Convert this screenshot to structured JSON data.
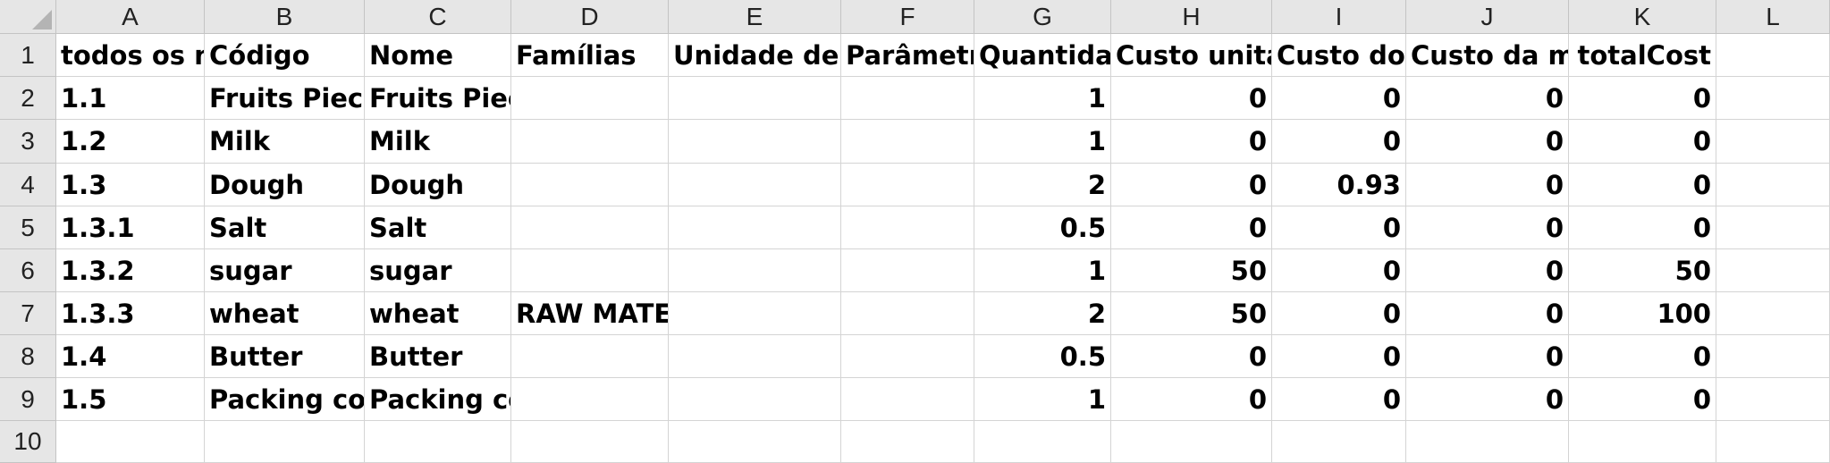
{
  "columns": [
    "A",
    "B",
    "C",
    "D",
    "E",
    "F",
    "G",
    "H",
    "I",
    "J",
    "K",
    "L"
  ],
  "rows": [
    "1",
    "2",
    "3",
    "4",
    "5",
    "6",
    "7",
    "8",
    "9",
    "10"
  ],
  "cells": [
    [
      "todos os ní",
      "Código",
      "Nome",
      "Famílias",
      "Unidade de ı",
      "Parâmetro",
      "Quantidac",
      "Custo unitá",
      "Custo do t",
      "Custo da ma",
      "totalCost",
      ""
    ],
    [
      "1.1",
      "Fruits Piece",
      "Fruits Piec",
      "",
      "",
      "",
      "1",
      "0",
      "0",
      "0",
      "0",
      ""
    ],
    [
      "1.2",
      "Milk",
      "Milk",
      "",
      "",
      "",
      "1",
      "0",
      "0",
      "0",
      "0",
      ""
    ],
    [
      "1.3",
      "Dough",
      "Dough",
      "",
      "",
      "",
      "2",
      "0",
      "0.93",
      "0",
      "0",
      ""
    ],
    [
      "1.3.1",
      "Salt",
      "Salt",
      "",
      "",
      "",
      "0.5",
      "0",
      "0",
      "0",
      "0",
      ""
    ],
    [
      "1.3.2",
      "sugar",
      "sugar",
      "",
      "",
      "",
      "1",
      "50",
      "0",
      "0",
      "50",
      ""
    ],
    [
      "1.3.3",
      "wheat",
      "wheat",
      "RAW MATE",
      "",
      "",
      "2",
      "50",
      "0",
      "0",
      "100",
      ""
    ],
    [
      "1.4",
      "Butter",
      "Butter",
      "",
      "",
      "",
      "0.5",
      "0",
      "0",
      "0",
      "0",
      ""
    ],
    [
      "1.5",
      "Packing cov",
      "Packing co",
      "",
      "",
      "",
      "1",
      "0",
      "0",
      "0",
      "0",
      ""
    ],
    [
      "",
      "",
      "",
      "",
      "",
      "",
      "",
      "",
      "",
      "",
      "",
      ""
    ]
  ],
  "numeric_columns": [
    6,
    7,
    8,
    9,
    10
  ],
  "icons": {
    "select_all": "select-all-triangle-icon"
  },
  "colors": {
    "header_bg": "#e6e6e6",
    "grid": "#d4d4d4"
  }
}
